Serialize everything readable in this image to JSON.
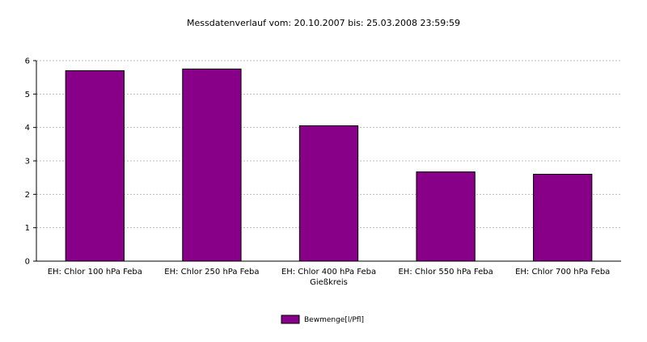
{
  "chart_data": {
    "type": "bar",
    "title": "Messdatenverlauf vom: 20.10.2007  bis: 25.03.2008 23:59:59",
    "categories": [
      "EH: Chlor 100 hPa Feba",
      "EH: Chlor 250 hPa Feba",
      "EH: Chlor 400 hPa Feba\nGießkreis",
      "EH: Chlor 550 hPa Feba",
      "EH: Chlor 700 hPa Feba"
    ],
    "series": [
      {
        "name": "Bewmenge[l/Pfl]",
        "color": "#880088",
        "values": [
          5.7,
          5.75,
          4.05,
          2.67,
          2.6
        ]
      }
    ],
    "ylim": [
      0,
      6
    ],
    "yticks": [
      0,
      1,
      2,
      3,
      4,
      5,
      6
    ],
    "grid": true,
    "legend": "bottom"
  }
}
